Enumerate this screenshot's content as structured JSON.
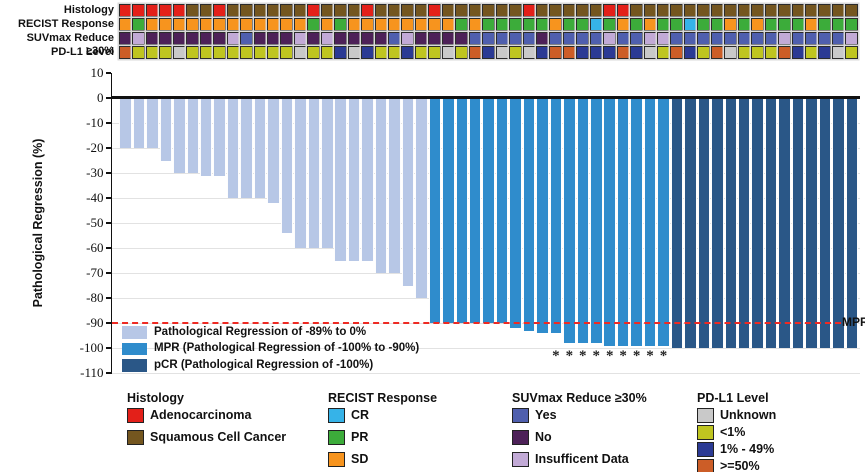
{
  "tracks": {
    "rows": [
      {
        "label": "Histology",
        "key": "histology"
      },
      {
        "label": "RECIST Response",
        "key": "recist"
      },
      {
        "label": "SUVmax Reduce ≥30%",
        "key": "suvmax"
      },
      {
        "label": "PD-L1 Level",
        "key": "pdl1"
      }
    ],
    "cells": {
      "histology": [
        "A",
        "A",
        "A",
        "A",
        "A",
        "S",
        "S",
        "A",
        "S",
        "S",
        "S",
        "S",
        "S",
        "S",
        "A",
        "S",
        "S",
        "S",
        "A",
        "S",
        "S",
        "S",
        "S",
        "A",
        "S",
        "S",
        "S",
        "S",
        "S",
        "S",
        "A",
        "S",
        "S",
        "S",
        "S",
        "S",
        "A",
        "A",
        "S",
        "S",
        "S",
        "S",
        "S",
        "S",
        "S",
        "S",
        "S",
        "S",
        "S",
        "S",
        "S",
        "S",
        "S",
        "S",
        "S"
      ],
      "recist": [
        "SD",
        "PR",
        "SD",
        "SD",
        "SD",
        "SD",
        "SD",
        "SD",
        "SD",
        "SD",
        "SD",
        "SD",
        "SD",
        "SD",
        "PR",
        "SD",
        "PR",
        "SD",
        "SD",
        "SD",
        "SD",
        "SD",
        "SD",
        "SD",
        "SD",
        "PR",
        "SD",
        "PR",
        "PR",
        "PR",
        "PR",
        "PR",
        "SD",
        "PR",
        "PR",
        "CR",
        "PR",
        "SD",
        "PR",
        "SD",
        "PR",
        "PR",
        "CR",
        "PR",
        "PR",
        "SD",
        "PR",
        "SD",
        "PR",
        "PR",
        "PR",
        "SD",
        "PR",
        "PR",
        "PR"
      ],
      "suvmax": [
        "N",
        "I",
        "N",
        "N",
        "N",
        "N",
        "N",
        "N",
        "I",
        "Y",
        "N",
        "N",
        "N",
        "I",
        "N",
        "I",
        "N",
        "N",
        "N",
        "N",
        "Y",
        "I",
        "N",
        "N",
        "N",
        "N",
        "Y",
        "Y",
        "Y",
        "Y",
        "Y",
        "N",
        "Y",
        "Y",
        "Y",
        "Y",
        "I",
        "Y",
        "Y",
        "I",
        "I",
        "Y",
        "Y",
        "Y",
        "Y",
        "Y",
        "Y",
        "Y",
        "Y",
        "I",
        "Y",
        "Y",
        "Y",
        "Y",
        "I"
      ],
      "pdl1": [
        "H",
        "L",
        "L",
        "L",
        "U",
        "L",
        "L",
        "L",
        "L",
        "L",
        "L",
        "L",
        "L",
        "U",
        "L",
        "L",
        "M",
        "U",
        "M",
        "L",
        "L",
        "M",
        "L",
        "L",
        "U",
        "L",
        "H",
        "M",
        "U",
        "L",
        "U",
        "M",
        "H",
        "H",
        "M",
        "M",
        "M",
        "H",
        "M",
        "U",
        "L",
        "H",
        "M",
        "L",
        "H",
        "U",
        "L",
        "L",
        "L",
        "H",
        "M",
        "L",
        "M",
        "U",
        "L"
      ]
    }
  },
  "palettes": {
    "histology": {
      "A": "#e32019",
      "S": "#74561f"
    },
    "recist": {
      "CR": "#36b3e8",
      "PR": "#3cac3a",
      "SD": "#f7941e"
    },
    "suvmax": {
      "Y": "#4f5fae",
      "N": "#4d2158",
      "I": "#c2aad6"
    },
    "pdl1": {
      "U": "#c9c9c9",
      "L": "#bfc520",
      "M": "#2b3a94",
      "H": "#cc5d27"
    }
  },
  "chart_data": {
    "type": "bar",
    "title": "",
    "xlabel": "",
    "ylabel": "Pathological Regression (%)",
    "ylim": [
      -110,
      10
    ],
    "yticks": [
      10,
      0,
      -10,
      -20,
      -30,
      -40,
      -50,
      -60,
      -70,
      -80,
      -90,
      -100,
      -110
    ],
    "grid": true,
    "n_bars": 55,
    "values": [
      -20,
      -20,
      -20,
      -25,
      -30,
      -30,
      -31,
      -31,
      -40,
      -40,
      -40,
      -42,
      -54,
      -60,
      -60,
      -60,
      -65,
      -65,
      -65,
      -70,
      -70,
      -75,
      -80,
      -90,
      -90,
      -90,
      -90,
      -90,
      -90,
      -92,
      -93,
      -94,
      -94,
      -98,
      -98,
      -98,
      -99,
      -99,
      -99,
      -99,
      -99,
      -100,
      -100,
      -100,
      -100,
      -100,
      -100,
      -100,
      -100,
      -100,
      -100,
      -100,
      -100,
      -100,
      -100
    ],
    "group_counts": [
      {
        "name": "light",
        "count": 23
      },
      {
        "name": "mpr",
        "count": 18
      },
      {
        "name": "pcr",
        "count": 14
      }
    ],
    "bar_colors": {
      "light": "#b7c7e6",
      "mpr": "#2f8ccc",
      "pcr": "#2a5787"
    },
    "bar_legend": [
      {
        "name": "light",
        "label": "Pathological Regression of -89% to 0%",
        "color": "#b7c7e6"
      },
      {
        "name": "mpr",
        "label": "MPR (Pathological Regression of -100% to -90%)",
        "color": "#2f8ccc"
      },
      {
        "name": "pcr",
        "label": "pCR (Pathological Regression of -100%)",
        "color": "#2a5787"
      }
    ],
    "mpr_line": {
      "y": -90,
      "label": "MPR",
      "color": "#ee2a23"
    },
    "asterisk_char": "*",
    "asterisk_columns": [
      33,
      34,
      35,
      36,
      37,
      38,
      39,
      40,
      41
    ]
  },
  "legend_groups": [
    {
      "title": "Histology",
      "items": [
        {
          "label": "Adenocarcinoma",
          "color": "#e32019"
        },
        {
          "label": "Squamous Cell Cancer",
          "color": "#74561f"
        }
      ]
    },
    {
      "title": "RECIST Response",
      "items": [
        {
          "label": "CR",
          "color": "#36b3e8"
        },
        {
          "label": "PR",
          "color": "#3cac3a"
        },
        {
          "label": "SD",
          "color": "#f7941e"
        }
      ]
    },
    {
      "title": "SUVmax Reduce ≥30%",
      "items": [
        {
          "label": "Yes",
          "color": "#4f5fae"
        },
        {
          "label": "No",
          "color": "#4d2158"
        },
        {
          "label": "Insufficent Data",
          "color": "#c2aad6"
        }
      ]
    },
    {
      "title": "PD-L1 Level",
      "items": [
        {
          "label": "Unknown",
          "color": "#c9c9c9"
        },
        {
          "label": "<1%",
          "color": "#bfc520"
        },
        {
          "label": "1% - 49%",
          "color": "#2b3a94"
        },
        {
          "label": ">=50%",
          "color": "#cc5d27"
        }
      ]
    }
  ]
}
